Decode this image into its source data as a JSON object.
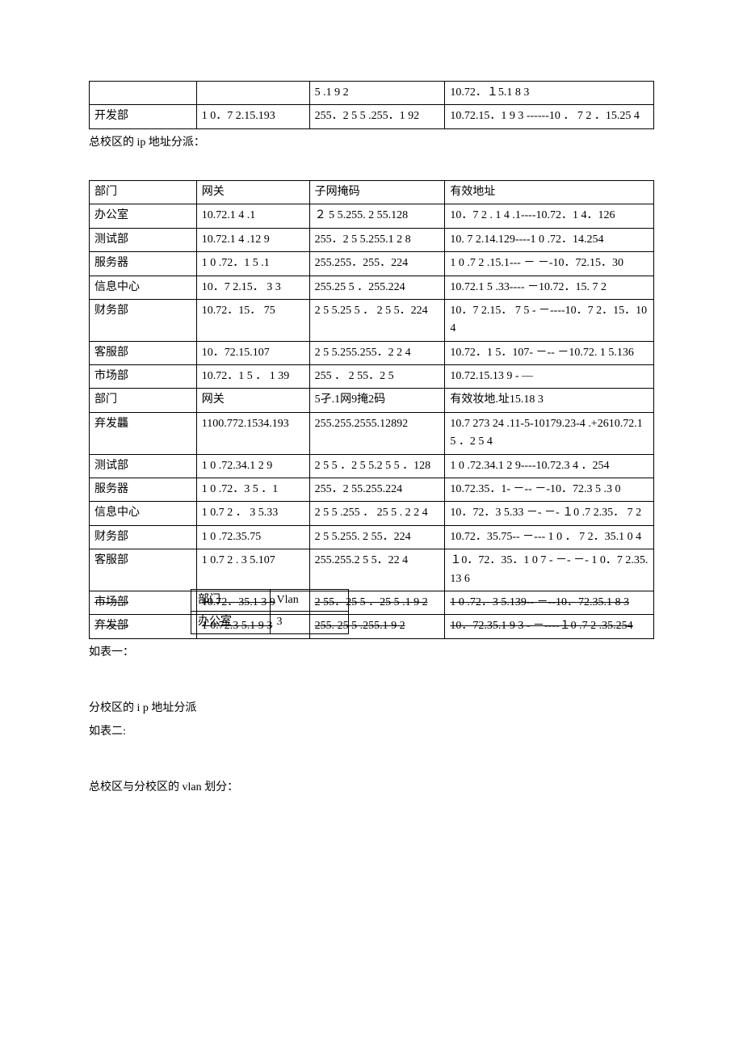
{
  "table1": {
    "rows": [
      [
        "",
        "",
        "5 .1 9 2",
        "10.72．１5.1 8 3"
      ],
      [
        "开发部",
        "1 0．7 2.15.193",
        "255．2 5 5 .255．1 92",
        "10.72.15．1  9  3  ------10 ． 7 2 ．15.25 4"
      ]
    ]
  },
  "caption1": "总校区的 ip 地址分派：",
  "table2": {
    "header": [
      "部门",
      "网关",
      "子网掩码",
      "有效地址"
    ],
    "rows": [
      [
        "办公室",
        "10.72.1 4 .1",
        "２    5    5.255.   2 55.128",
        "10．7  2 . 1  4 .1----10.72．1 4．126"
      ],
      [
        "测试部",
        "10.72.1 4 .12 9",
        "255．2  5 5.255.1 2 8",
        "10.        7        2.14.129----1 0 .72．14.254"
      ],
      [
        "服务器",
        "1 0 .72．1  5 .1",
        "255.255．255．224",
        "1   0   .7   2   .15.1---  －  －-10．72.15．30"
      ],
      [
        "信息中心",
        "10．7 2.15． 3 3",
        "255.25 5 ．255.224",
        "10.72.1 5 .33---- －10.72．15. 7 2"
      ],
      [
        "财务部",
        "10.72．15． 75",
        "2  5 5.25 5 ． 2 5 5．224",
        "10．7 2.15． 7  5 - －----10．7 2．15．104"
      ],
      [
        "客服部",
        "10．72.15.107",
        "2  5 5.255.255．2 2 4",
        "10.72．1 5．107- －-- －10.72. 1 5.136"
      ],
      [
        "市场部",
        "10.72．1 5 ． 1 39",
        "255 ．  2 55．2  5",
        "10.72.15.13      9      -      —"
      ]
    ]
  },
  "overlayA": {
    "rows": [
      [
        "部门",
        "网关",
        "5孑.1网9掩2码",
        "有效妆地.址15.18 3"
      ],
      [
        "弃发龘",
        "1100.772.1534.193",
        "255.255.2555.12892",
        "10.7 273 24  .11-5-10179.23-4 .+2610.72.1 5 ．2 5 4"
      ]
    ]
  },
  "table3": {
    "rows": [
      [
        "测试部",
        "1 0 .72.34.1 2 9",
        "2 5 5 ．2 5 5.2 5 5 ．128",
        "1  0  .72.34.1  2  9----10.72.3 4 ．254"
      ],
      [
        "服务器",
        "1 0 .72．3 5 ．1",
        "255．2 55.255.224",
        "10.72.35．1- －-- －-10．72.3 5 .3 0"
      ],
      [
        "信息中心",
        "1 0.7 2 ． 3 5.33",
        "2  5  5 .255 ． 25 5 . 2 2 4",
        "10．72．3 5.33 －- －- １0 .7 2.35． 7 2"
      ],
      [
        "财务部",
        "1  0 .72.35.75",
        "2    5   5.255.   2 55．224",
        "10.72．35.75-- －--- 1 0 ． 7 2．35.1 0 4"
      ],
      [
        "客服部",
        "1 0.7 2 . 3 5.107",
        "255.255.2 5 5．22 4",
        "１0．72．35．1  0  7 - －- －- 1 0．7 2.35.13 6"
      ]
    ]
  },
  "overlayB": {
    "row1": [
      "市场部",
      "10.72．35.1 3 9",
      "2 55．25 5 ．25 5 .1 9 2",
      "1   0   .72．3   5.139--  －--10．72.35.1 8 3"
    ],
    "row2": [
      "弃发部",
      "1 0.72.3 5.1 9 3",
      "255. 25 5 .255.1 9 2",
      "10．72.35.1 9  3  - －----１0 .7 2 .35.254"
    ]
  },
  "smallVlan": {
    "header": [
      "部门",
      "Vlan"
    ],
    "row": [
      "办公室",
      "3"
    ]
  },
  "caption2": "如表一：",
  "caption3": "分校区的 i p 地址分派",
  "caption4": "如表二:",
  "caption5": "总校区与分校区的 vlan 划分："
}
